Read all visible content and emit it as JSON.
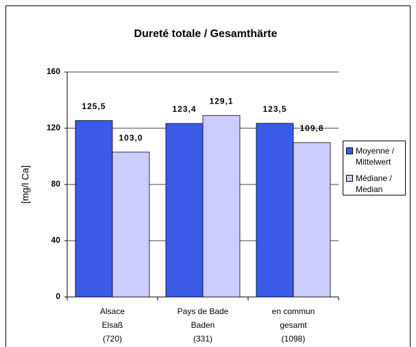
{
  "chart_data": {
    "type": "bar",
    "title": "Dureté totale / Gesamthärte",
    "y_label": "[mg/l Ca]",
    "categories": [
      [
        "Alsace",
        "Elsaß",
        "(720)"
      ],
      [
        "Pays de Bade",
        "Baden",
        "(331)"
      ],
      [
        "en commun",
        "gesamt",
        "(1098)"
      ]
    ],
    "series": [
      {
        "name": "Moyenne / Mittelwert",
        "color": "#3a5ae8",
        "values": [
          125.5,
          123.4,
          123.5
        ],
        "value_labels": [
          "125,5",
          "123,4",
          "123,5"
        ]
      },
      {
        "name": "Médiane / Median",
        "color": "#ccccff",
        "values": [
          103.0,
          129.1,
          109.8
        ],
        "value_labels": [
          "103,0",
          "129,1",
          "109,8"
        ]
      }
    ],
    "ylim": [
      0,
      160
    ],
    "yticks": [
      0,
      40,
      80,
      120,
      160
    ],
    "grid": true,
    "legend": "right"
  }
}
